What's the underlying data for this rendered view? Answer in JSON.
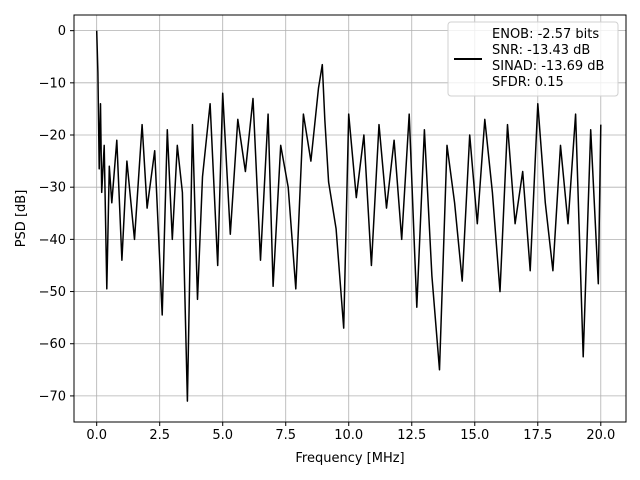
{
  "chart_data": {
    "type": "line",
    "title": "",
    "xlabel": "Frequency [MHz]",
    "ylabel": "PSD [dB]",
    "xlim": [
      -0.9,
      21.0
    ],
    "ylim": [
      -75,
      3
    ],
    "xticks": [
      0.0,
      2.5,
      5.0,
      7.5,
      10.0,
      12.5,
      15.0,
      17.5,
      20.0
    ],
    "xtick_labels": [
      "0.0",
      "2.5",
      "5.0",
      "7.5",
      "10.0",
      "12.5",
      "15.0",
      "17.5",
      "20.0"
    ],
    "yticks": [
      0,
      -10,
      -20,
      -30,
      -40,
      -50,
      -60,
      -70
    ],
    "ytick_labels": [
      "0",
      "−10",
      "−20",
      "−30",
      "−40",
      "−50",
      "−60",
      "−70"
    ],
    "grid": true,
    "legend_position": "top-right",
    "series": [
      {
        "color": "#000000",
        "legend_lines": [
          "ENOB: -2.57 bits",
          "SNR: -13.43 dB",
          "SINAD: -13.69 dB",
          "SFDR: 0.15"
        ],
        "x": [
          0.0,
          0.05,
          0.1,
          0.15,
          0.2,
          0.3,
          0.4,
          0.5,
          0.6,
          0.8,
          1.0,
          1.2,
          1.5,
          1.8,
          2.0,
          2.3,
          2.6,
          2.8,
          3.0,
          3.2,
          3.4,
          3.6,
          3.8,
          4.0,
          4.2,
          4.5,
          4.8,
          5.0,
          5.3,
          5.6,
          5.9,
          6.2,
          6.5,
          6.8,
          7.0,
          7.3,
          7.6,
          7.9,
          8.2,
          8.5,
          8.8,
          8.95,
          9.05,
          9.2,
          9.5,
          9.8,
          10.0,
          10.3,
          10.6,
          10.9,
          11.2,
          11.5,
          11.8,
          12.1,
          12.4,
          12.7,
          13.0,
          13.3,
          13.6,
          13.9,
          14.2,
          14.5,
          14.8,
          15.1,
          15.4,
          15.7,
          16.0,
          16.3,
          16.6,
          16.9,
          17.2,
          17.5,
          17.8,
          18.1,
          18.4,
          18.7,
          19.0,
          19.3,
          19.6,
          19.9,
          20.0
        ],
        "y": [
          0.0,
          -8.0,
          -26.5,
          -14.0,
          -31.0,
          -22.0,
          -49.5,
          -26.0,
          -33.0,
          -21.0,
          -44.0,
          -25.0,
          -40.0,
          -18.0,
          -34.0,
          -23.0,
          -54.5,
          -19.0,
          -40.0,
          -22.0,
          -31.0,
          -71.0,
          -18.0,
          -51.5,
          -28.0,
          -14.0,
          -45.0,
          -12.0,
          -39.0,
          -17.0,
          -27.0,
          -13.0,
          -44.0,
          -16.0,
          -49.0,
          -22.0,
          -30.0,
          -49.5,
          -16.0,
          -25.0,
          -11.0,
          -6.5,
          -17.0,
          -29.0,
          -38.0,
          -57.0,
          -16.0,
          -32.0,
          -20.0,
          -45.0,
          -18.0,
          -34.0,
          -21.0,
          -40.0,
          -16.0,
          -53.0,
          -19.0,
          -47.0,
          -65.0,
          -22.0,
          -33.0,
          -48.0,
          -20.0,
          -37.0,
          -17.0,
          -31.0,
          -50.0,
          -18.0,
          -37.0,
          -27.0,
          -46.0,
          -14.0,
          -33.0,
          -46.0,
          -22.0,
          -37.0,
          -16.0,
          -62.5,
          -19.0,
          -48.5,
          -18.0
        ]
      }
    ]
  }
}
